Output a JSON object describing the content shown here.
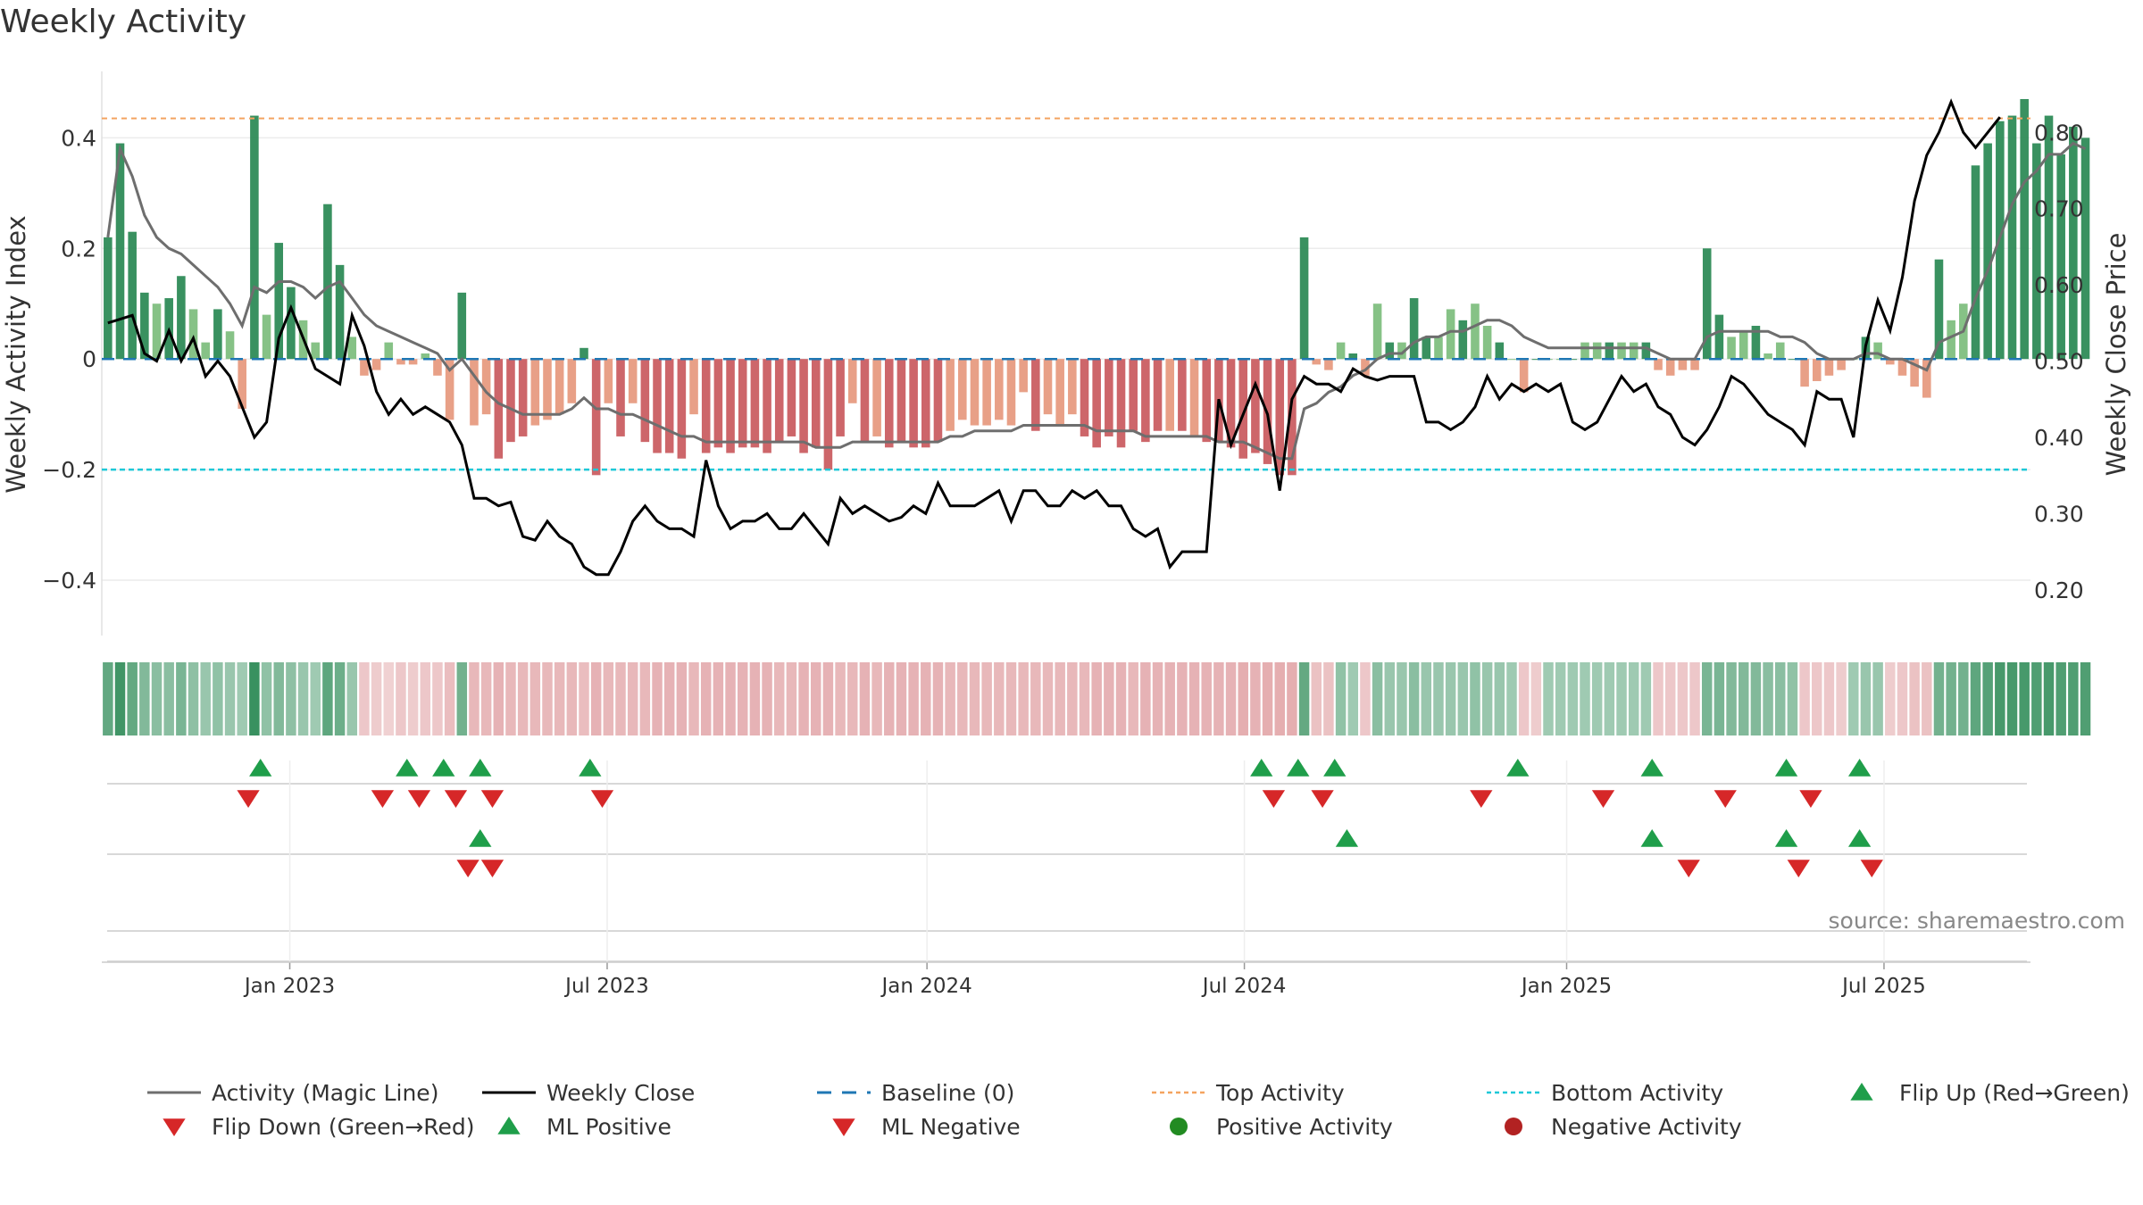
{
  "title": "Weekly Activity",
  "source": "source: sharemaestro.com",
  "colors": {
    "bar_pos_strong": "#2e8b57",
    "bar_pos_light": "#7fbf7f",
    "bar_neg_strong": "#c8555a",
    "bar_neg_light": "#e6967a",
    "magic_line": "#6e6e6e",
    "close_line": "#000000",
    "baseline": "#1f77b4",
    "top_line": "#f4a460",
    "bottom_line": "#1ec8d8",
    "up_marker": "#1f9e4a",
    "down_marker": "#d62728",
    "pos_dot": "#228b22",
    "neg_dot": "#b22222"
  },
  "legend": [
    {
      "label": "Activity (Magic Line)",
      "kind": "line",
      "color": "#6e6e6e"
    },
    {
      "label": "Weekly Close",
      "kind": "line",
      "color": "#000000"
    },
    {
      "label": "Baseline (0)",
      "kind": "dash",
      "color": "#1f77b4"
    },
    {
      "label": "Top Activity",
      "kind": "dot",
      "color": "#f4a460"
    },
    {
      "label": "Bottom Activity",
      "kind": "dot",
      "color": "#1ec8d8"
    },
    {
      "label": "Flip Up (Red→Green)",
      "kind": "up",
      "color": "#1f9e4a"
    },
    {
      "label": "Flip Down (Green→Red)",
      "kind": "down",
      "color": "#d62728"
    },
    {
      "label": "ML Positive",
      "kind": "up",
      "color": "#1f9e4a"
    },
    {
      "label": "ML Negative",
      "kind": "down",
      "color": "#d62728"
    },
    {
      "label": "Positive Activity",
      "kind": "circle",
      "color": "#228b22"
    },
    {
      "label": "Negative Activity",
      "kind": "circle",
      "color": "#b22222"
    }
  ],
  "chart_data": {
    "type": "bar",
    "title": "Weekly Activity",
    "ylabel": "Weekly Activity Index",
    "y2label": "Weekly Close Price",
    "ylim": [
      -0.5,
      0.52
    ],
    "y2lim": [
      0.14,
      0.88
    ],
    "yticks": [
      0.4,
      0.2,
      0,
      -0.2,
      -0.4
    ],
    "ytick_labels": [
      "0.4",
      "0.2",
      "0",
      "−0.2",
      "−0.4"
    ],
    "y2ticks": [
      0.8,
      0.7,
      0.6,
      0.5,
      0.4,
      0.3,
      0.2
    ],
    "y2tick_labels": [
      "0.80",
      "0.70",
      "0.60",
      "0.50",
      "0.40",
      "0.30",
      "0.20"
    ],
    "xlim_weeks": [
      0,
      158
    ],
    "xticks": [
      {
        "week": 15.4,
        "label": "Jan 2023"
      },
      {
        "week": 41.4,
        "label": "Jul 2023"
      },
      {
        "week": 67.6,
        "label": "Jan 2024"
      },
      {
        "week": 93.6,
        "label": "Jul 2024"
      },
      {
        "week": 120.0,
        "label": "Jan 2025"
      },
      {
        "week": 146.0,
        "label": "Jul 2025"
      }
    ],
    "top_activity": 0.435,
    "bottom_activity": -0.2,
    "baseline": 0,
    "weeks_start": 0.5,
    "activity": [
      0.22,
      0.39,
      0.23,
      0.12,
      0.1,
      0.11,
      0.15,
      0.09,
      0.03,
      0.09,
      0.05,
      -0.09,
      0.44,
      0.08,
      0.21,
      0.13,
      0.07,
      0.03,
      0.28,
      0.17,
      0.04,
      -0.03,
      -0.02,
      0.03,
      -0.01,
      -0.01,
      0.01,
      -0.03,
      -0.11,
      0.12,
      -0.12,
      -0.1,
      -0.18,
      -0.15,
      -0.14,
      -0.12,
      -0.11,
      -0.1,
      -0.08,
      0.02,
      -0.21,
      -0.08,
      -0.14,
      -0.08,
      -0.15,
      -0.17,
      -0.17,
      -0.18,
      -0.1,
      -0.17,
      -0.16,
      -0.17,
      -0.16,
      -0.16,
      -0.17,
      -0.15,
      -0.14,
      -0.17,
      -0.16,
      -0.2,
      -0.14,
      -0.08,
      -0.15,
      -0.14,
      -0.16,
      -0.15,
      -0.16,
      -0.16,
      -0.15,
      -0.13,
      -0.11,
      -0.12,
      -0.12,
      -0.11,
      -0.12,
      -0.06,
      -0.13,
      -0.1,
      -0.12,
      -0.1,
      -0.14,
      -0.16,
      -0.14,
      -0.16,
      -0.13,
      -0.15,
      -0.13,
      -0.13,
      -0.13,
      -0.14,
      -0.15,
      -0.15,
      -0.16,
      -0.18,
      -0.17,
      -0.19,
      -0.21,
      -0.21,
      0.22,
      -0.01,
      -0.02,
      0.03,
      0.01,
      -0.03,
      0.1,
      0.03,
      0.03,
      0.11,
      0.04,
      0.04,
      0.09,
      0.07,
      0.1,
      0.06,
      0.03,
      0.0,
      -0.06,
      0.0,
      0.0,
      0.0,
      0.0,
      0.03,
      0.03,
      0.03,
      0.03,
      0.03,
      0.03,
      -0.02,
      -0.03,
      -0.02,
      -0.02,
      0.2,
      0.08,
      0.04,
      0.05,
      0.06,
      0.01,
      0.03,
      0.0,
      -0.05,
      -0.04,
      -0.03,
      -0.02,
      0.0,
      0.04,
      0.03,
      -0.01,
      -0.03,
      -0.05,
      -0.07,
      0.18,
      0.07,
      0.1,
      0.35,
      0.39,
      0.43,
      0.44,
      0.47,
      0.39,
      0.44,
      0.37,
      0.42,
      0.4
    ],
    "magic_line": [
      0.22,
      0.38,
      0.33,
      0.26,
      0.22,
      0.2,
      0.19,
      0.17,
      0.15,
      0.13,
      0.1,
      0.06,
      0.13,
      0.12,
      0.14,
      0.14,
      0.13,
      0.11,
      0.13,
      0.14,
      0.11,
      0.08,
      0.06,
      0.05,
      0.04,
      0.03,
      0.02,
      0.01,
      -0.02,
      0.0,
      -0.03,
      -0.06,
      -0.08,
      -0.09,
      -0.1,
      -0.1,
      -0.1,
      -0.1,
      -0.09,
      -0.07,
      -0.09,
      -0.09,
      -0.1,
      -0.1,
      -0.11,
      -0.12,
      -0.13,
      -0.14,
      -0.14,
      -0.15,
      -0.15,
      -0.15,
      -0.15,
      -0.15,
      -0.15,
      -0.15,
      -0.15,
      -0.15,
      -0.16,
      -0.16,
      -0.16,
      -0.15,
      -0.15,
      -0.15,
      -0.15,
      -0.15,
      -0.15,
      -0.15,
      -0.15,
      -0.14,
      -0.14,
      -0.13,
      -0.13,
      -0.13,
      -0.13,
      -0.12,
      -0.12,
      -0.12,
      -0.12,
      -0.12,
      -0.12,
      -0.13,
      -0.13,
      -0.13,
      -0.13,
      -0.14,
      -0.14,
      -0.14,
      -0.14,
      -0.14,
      -0.14,
      -0.15,
      -0.15,
      -0.15,
      -0.16,
      -0.17,
      -0.18,
      -0.18,
      -0.09,
      -0.08,
      -0.06,
      -0.05,
      -0.03,
      -0.02,
      0.0,
      0.01,
      0.01,
      0.03,
      0.04,
      0.04,
      0.05,
      0.05,
      0.06,
      0.07,
      0.07,
      0.06,
      0.04,
      0.03,
      0.02,
      0.02,
      0.02,
      0.02,
      0.02,
      0.02,
      0.02,
      0.02,
      0.02,
      0.01,
      0.0,
      0.0,
      0.0,
      0.04,
      0.05,
      0.05,
      0.05,
      0.05,
      0.05,
      0.04,
      0.04,
      0.03,
      0.01,
      0.0,
      0.0,
      0.0,
      0.01,
      0.01,
      0.0,
      0.0,
      -0.01,
      -0.02,
      0.03,
      0.04,
      0.05,
      0.11,
      0.16,
      0.22,
      0.28,
      0.32,
      0.34,
      0.37,
      0.37,
      0.39,
      0.38
    ],
    "weekly_close": [
      0.55,
      0.555,
      0.56,
      0.51,
      0.5,
      0.54,
      0.5,
      0.53,
      0.48,
      0.5,
      0.48,
      0.44,
      0.4,
      0.42,
      0.53,
      0.57,
      0.53,
      0.49,
      0.48,
      0.47,
      0.56,
      0.52,
      0.46,
      0.43,
      0.45,
      0.43,
      0.44,
      0.43,
      0.42,
      0.39,
      0.32,
      0.32,
      0.31,
      0.315,
      0.27,
      0.265,
      0.29,
      0.27,
      0.26,
      0.23,
      0.22,
      0.22,
      0.25,
      0.29,
      0.31,
      0.29,
      0.28,
      0.28,
      0.27,
      0.37,
      0.31,
      0.28,
      0.29,
      0.29,
      0.3,
      0.28,
      0.28,
      0.3,
      0.28,
      0.26,
      0.32,
      0.3,
      0.31,
      0.3,
      0.29,
      0.295,
      0.31,
      0.3,
      0.34,
      0.31,
      0.31,
      0.31,
      0.32,
      0.33,
      0.29,
      0.33,
      0.33,
      0.31,
      0.31,
      0.33,
      0.32,
      0.33,
      0.31,
      0.31,
      0.28,
      0.27,
      0.28,
      0.23,
      0.25,
      0.25,
      0.25,
      0.45,
      0.39,
      0.43,
      0.47,
      0.43,
      0.33,
      0.45,
      0.48,
      0.47,
      0.47,
      0.46,
      0.49,
      0.48,
      0.475,
      0.48,
      0.48,
      0.48,
      0.42,
      0.42,
      0.41,
      0.42,
      0.44,
      0.48,
      0.45,
      0.47,
      0.46,
      0.47,
      0.46,
      0.47,
      0.42,
      0.41,
      0.42,
      0.45,
      0.48,
      0.46,
      0.47,
      0.44,
      0.43,
      0.4,
      0.39,
      0.41,
      0.44,
      0.48,
      0.47,
      0.45,
      0.43,
      0.42,
      0.41,
      0.39,
      0.46,
      0.45,
      0.45,
      0.4,
      0.52,
      0.58,
      0.54,
      0.61,
      0.71,
      0.77,
      0.8,
      0.84,
      0.8,
      0.78,
      0.8,
      0.82
    ],
    "heat_strip": [
      0.72,
      0.95,
      0.7,
      0.5,
      0.45,
      0.45,
      0.55,
      0.42,
      0.35,
      0.4,
      0.35,
      0.3,
      1.0,
      0.4,
      0.5,
      0.42,
      0.35,
      0.3,
      0.75,
      0.65,
      0.35,
      -0.25,
      -0.2,
      -0.15,
      -0.25,
      -0.2,
      -0.25,
      -0.25,
      -0.35,
      0.6,
      -0.4,
      -0.4,
      -0.45,
      -0.4,
      -0.4,
      -0.4,
      -0.4,
      -0.4,
      -0.4,
      -0.35,
      -0.45,
      -0.4,
      -0.4,
      -0.4,
      -0.4,
      -0.45,
      -0.45,
      -0.45,
      -0.4,
      -0.45,
      -0.45,
      -0.45,
      -0.45,
      -0.45,
      -0.45,
      -0.4,
      -0.4,
      -0.45,
      -0.45,
      -0.45,
      -0.4,
      -0.4,
      -0.45,
      -0.4,
      -0.45,
      -0.45,
      -0.45,
      -0.45,
      -0.45,
      -0.4,
      -0.4,
      -0.4,
      -0.4,
      -0.4,
      -0.4,
      -0.4,
      -0.4,
      -0.4,
      -0.4,
      -0.4,
      -0.4,
      -0.45,
      -0.45,
      -0.45,
      -0.4,
      -0.45,
      -0.45,
      -0.45,
      -0.45,
      -0.45,
      -0.45,
      -0.45,
      -0.45,
      -0.5,
      -0.45,
      -0.5,
      -0.5,
      -0.5,
      0.7,
      -0.3,
      -0.3,
      0.4,
      0.3,
      -0.25,
      0.45,
      0.35,
      0.35,
      0.45,
      0.35,
      0.35,
      0.35,
      0.35,
      0.4,
      0.35,
      0.35,
      0.3,
      -0.25,
      -0.2,
      0.3,
      0.3,
      0.3,
      0.3,
      0.3,
      0.3,
      0.3,
      0.3,
      0.3,
      -0.25,
      -0.25,
      -0.25,
      -0.25,
      0.55,
      0.55,
      0.5,
      0.5,
      0.5,
      0.45,
      0.45,
      0.4,
      -0.25,
      -0.25,
      -0.25,
      -0.2,
      0.3,
      0.35,
      0.35,
      -0.2,
      -0.25,
      -0.3,
      -0.3,
      0.6,
      0.6,
      0.6,
      0.75,
      0.8,
      0.9,
      0.9,
      0.9,
      0.85,
      0.9,
      0.85,
      0.85,
      0.85
    ],
    "flip_up_weeks": [
      13,
      25,
      28,
      31,
      40,
      95,
      98,
      101,
      116,
      127,
      138,
      144
    ],
    "flip_down_weeks": [
      12,
      23,
      26,
      29,
      32,
      41,
      96,
      100,
      113,
      123,
      133,
      140
    ],
    "ml_positive_weeks": [
      31,
      102,
      127,
      138,
      144
    ],
    "ml_negative_weeks": [
      30,
      32,
      130,
      139,
      145
    ],
    "positive_activity_weeks": [],
    "negative_activity_weeks": []
  }
}
